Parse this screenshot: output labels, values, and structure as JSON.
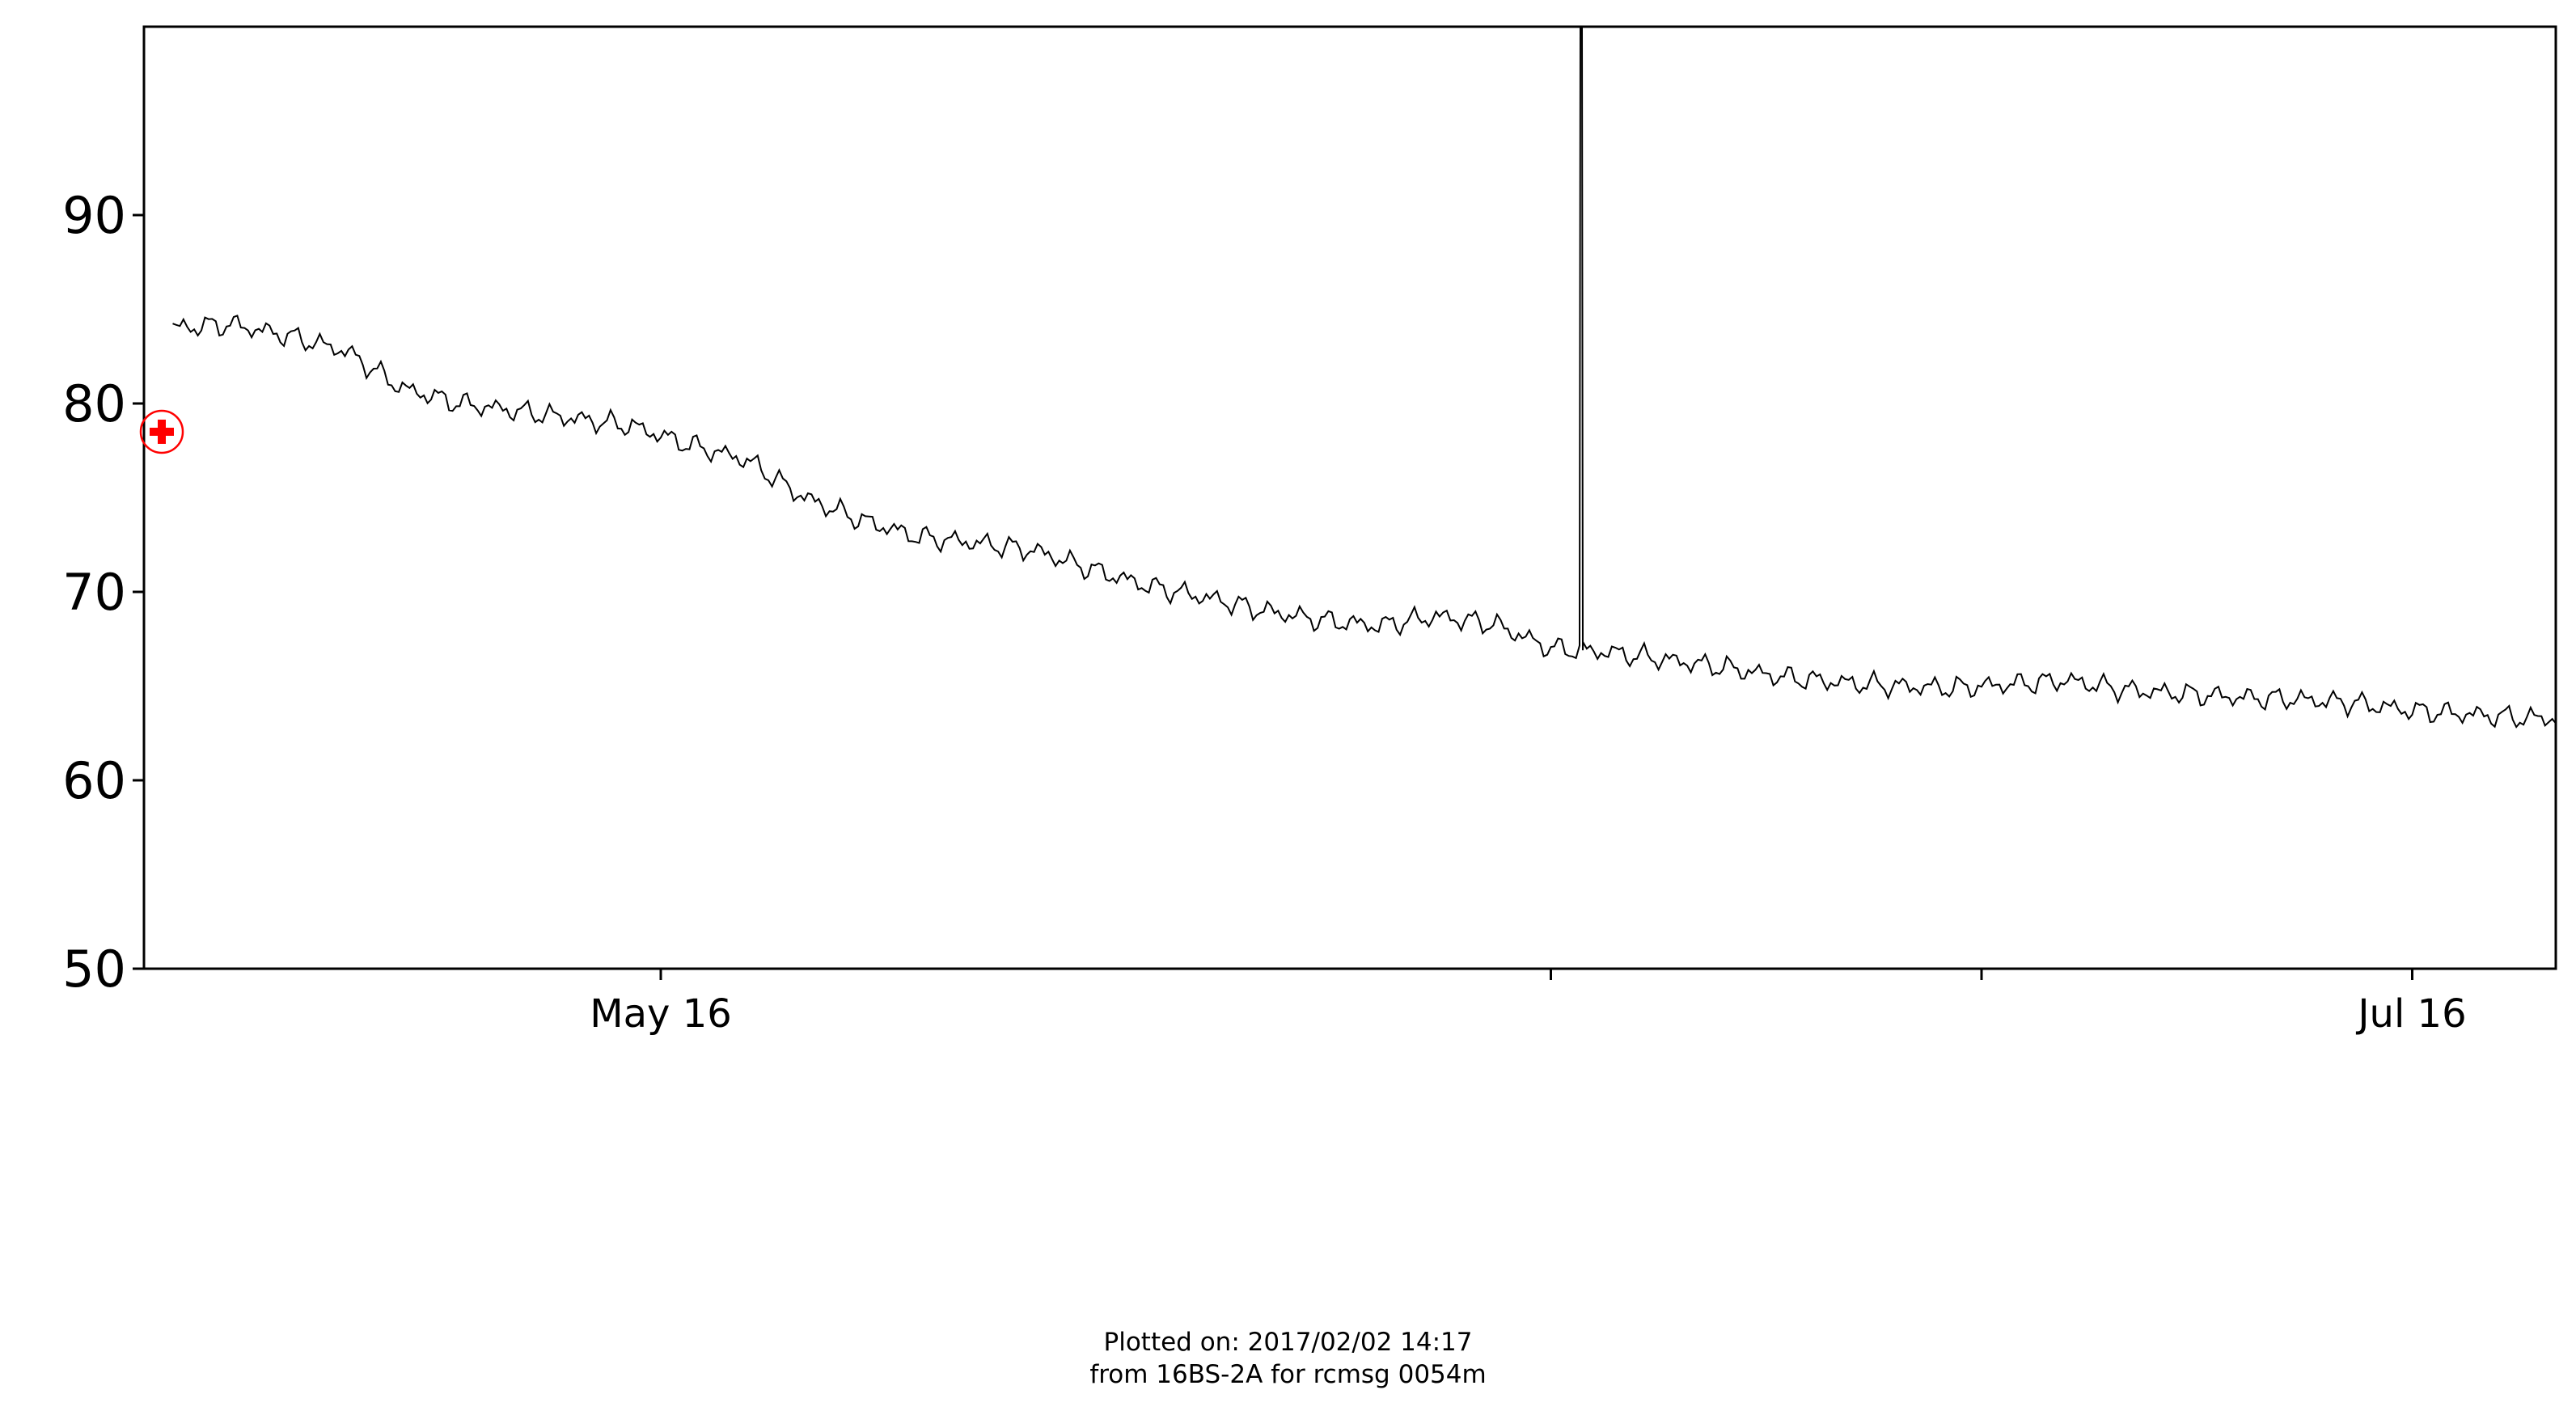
{
  "chart_data": {
    "type": "line",
    "title": "",
    "xlabel": "",
    "ylabel": "",
    "ylim": [
      50,
      100
    ],
    "y_ticks": [
      50,
      60,
      70,
      80,
      90
    ],
    "x_range": [
      "2016-04-28",
      "2016-07-21"
    ],
    "x_ticks": [
      {
        "date": "2016-05-16",
        "label": "May 16"
      },
      {
        "date": "2016-06-16",
        "label": ""
      },
      {
        "date": "2016-07-01",
        "label": ""
      },
      {
        "date": "2016-07-16",
        "label": "Jul 16"
      }
    ],
    "grid": false,
    "series": [
      {
        "color": "#000000",
        "x": [
          "2016-04-29",
          "2016-05-01",
          "2016-05-03",
          "2016-05-05",
          "2016-05-07",
          "2016-05-09",
          "2016-05-11",
          "2016-05-13",
          "2016-05-15",
          "2016-05-17",
          "2016-05-19",
          "2016-05-21",
          "2016-05-23",
          "2016-05-25",
          "2016-05-27",
          "2016-05-29",
          "2016-05-31",
          "2016-06-02",
          "2016-06-04",
          "2016-06-06",
          "2016-06-08",
          "2016-06-10",
          "2016-06-12",
          "2016-06-14",
          "2016-06-16",
          "2016-06-18",
          "2016-06-20",
          "2016-06-22",
          "2016-06-24",
          "2016-06-26",
          "2016-06-28",
          "2016-06-30",
          "2016-07-02",
          "2016-07-04",
          "2016-07-06",
          "2016-07-08",
          "2016-07-10",
          "2016-07-12",
          "2016-07-14",
          "2016-07-16",
          "2016-07-18",
          "2016-07-20",
          "2016-07-21"
        ],
        "y": [
          84.0,
          84.2,
          83.6,
          82.8,
          80.8,
          80.0,
          79.6,
          79.2,
          78.8,
          77.8,
          77.0,
          75.0,
          73.8,
          72.9,
          72.6,
          72.2,
          71.2,
          70.3,
          69.7,
          69.0,
          68.5,
          68.2,
          68.7,
          68.3,
          67.0,
          66.8,
          66.4,
          66.0,
          65.5,
          65.2,
          65.0,
          64.9,
          65.1,
          65.3,
          64.8,
          64.6,
          64.4,
          64.3,
          64.1,
          63.7,
          63.5,
          63.3,
          63.3
        ],
        "noise_amplitude": 0.7,
        "spike": {
          "date": "2016-06-17",
          "value": 100
        }
      }
    ],
    "marker": {
      "date": "2016-04-28",
      "value": 78.5,
      "color": "#ff0000"
    }
  },
  "footer": {
    "line1": "Plotted on: 2017/02/02 14:17",
    "line2": "from 16BS-2A for rcmsg 0054m"
  }
}
